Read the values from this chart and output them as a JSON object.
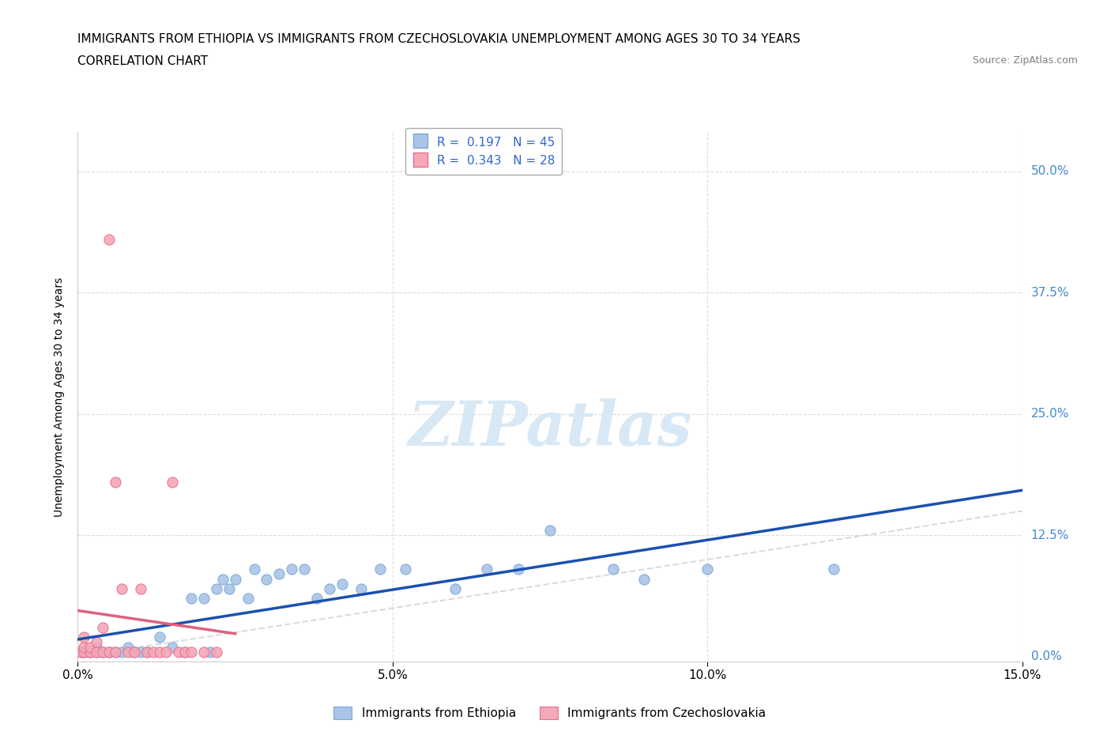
{
  "title_line1": "IMMIGRANTS FROM ETHIOPIA VS IMMIGRANTS FROM CZECHOSLOVAKIA UNEMPLOYMENT AMONG AGES 30 TO 34 YEARS",
  "title_line2": "CORRELATION CHART",
  "source": "Source: ZipAtlas.com",
  "ylabel": "Unemployment Among Ages 30 to 34 years",
  "xlim": [
    0.0,
    0.15
  ],
  "ylim": [
    -0.005,
    0.54
  ],
  "yticks": [
    0.0,
    0.125,
    0.25,
    0.375,
    0.5
  ],
  "ytick_labels": [
    "0.0%",
    "12.5%",
    "25.0%",
    "37.5%",
    "50.0%"
  ],
  "xticks": [
    0.0,
    0.05,
    0.1,
    0.15
  ],
  "xtick_labels": [
    "0.0%",
    "5.0%",
    "10.0%",
    "15.0%"
  ],
  "blue_R": 0.197,
  "blue_N": 45,
  "pink_R": 0.343,
  "pink_N": 28,
  "blue_color": "#aac4e8",
  "blue_edge": "#7aaad4",
  "pink_color": "#f4a8b8",
  "pink_edge": "#e87090",
  "blue_line_color": "#1a50b0",
  "pink_line_color": "#e06080",
  "ref_line_color": "#cccccc",
  "watermark_color": "#d8e8f5",
  "legend_blue_label": "Immigrants from Ethiopia",
  "legend_pink_label": "Immigrants from Czechoslovakia",
  "blue_x": [
    0.001,
    0.001,
    0.002,
    0.002,
    0.003,
    0.003,
    0.004,
    0.005,
    0.005,
    0.006,
    0.007,
    0.008,
    0.009,
    0.01,
    0.011,
    0.013,
    0.015,
    0.017,
    0.018,
    0.02,
    0.021,
    0.022,
    0.023,
    0.024,
    0.025,
    0.027,
    0.028,
    0.03,
    0.032,
    0.034,
    0.036,
    0.038,
    0.04,
    0.042,
    0.045,
    0.048,
    0.052,
    0.06,
    0.065,
    0.07,
    0.075,
    0.085,
    0.09,
    0.1,
    0.12
  ],
  "blue_y": [
    0.005,
    0.005,
    0.005,
    0.005,
    0.005,
    0.01,
    0.005,
    0.005,
    0.005,
    0.005,
    0.005,
    0.01,
    0.005,
    0.005,
    0.005,
    0.02,
    0.01,
    0.005,
    0.06,
    0.06,
    0.005,
    0.07,
    0.08,
    0.07,
    0.08,
    0.06,
    0.09,
    0.08,
    0.085,
    0.09,
    0.09,
    0.06,
    0.07,
    0.075,
    0.07,
    0.09,
    0.09,
    0.07,
    0.09,
    0.09,
    0.13,
    0.09,
    0.08,
    0.09,
    0.09
  ],
  "pink_x": [
    0.0005,
    0.001,
    0.001,
    0.001,
    0.002,
    0.002,
    0.003,
    0.003,
    0.004,
    0.004,
    0.005,
    0.005,
    0.006,
    0.006,
    0.007,
    0.008,
    0.009,
    0.01,
    0.011,
    0.012,
    0.013,
    0.014,
    0.015,
    0.016,
    0.017,
    0.018,
    0.02,
    0.022
  ],
  "pink_y": [
    0.005,
    0.005,
    0.01,
    0.02,
    0.005,
    0.01,
    0.005,
    0.015,
    0.005,
    0.03,
    0.43,
    0.005,
    0.005,
    0.18,
    0.07,
    0.005,
    0.005,
    0.07,
    0.005,
    0.005,
    0.005,
    0.005,
    0.18,
    0.005,
    0.005,
    0.005,
    0.005,
    0.005
  ],
  "pink_trend_x": [
    0.0,
    0.025
  ],
  "title_fontsize": 11,
  "axis_label_fontsize": 10,
  "tick_fontsize": 11,
  "legend_fontsize": 11,
  "tick_color": "#4488cc",
  "grid_color": "#dddddd",
  "ref_line_alpha": 0.7
}
